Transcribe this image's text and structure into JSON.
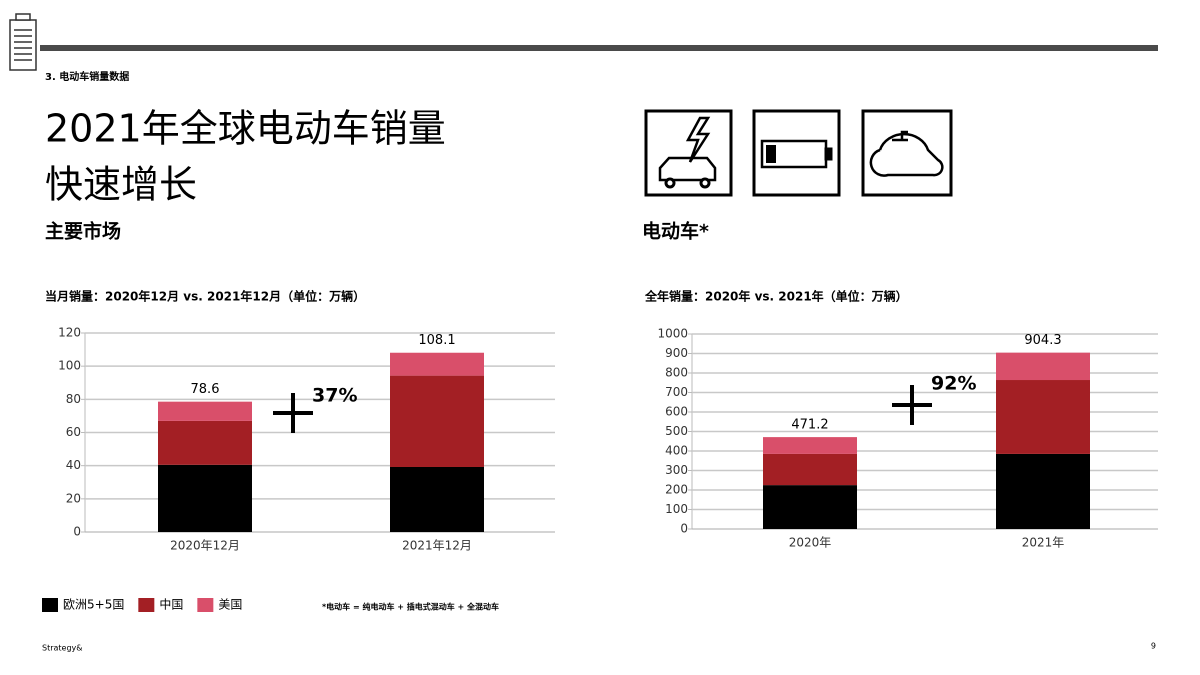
{
  "section": "3. 电动车销量数据",
  "title_lines": [
    "2021年全球电动车销量",
    "快速增长"
  ],
  "footnote": "*电动车 = 纯电动车 + 插电式混动车 + 全混动车",
  "footer": "Strategy&",
  "page_number": "9",
  "chart_data": [
    {
      "type": "stacked-bar",
      "heading": "主要市场",
      "title": "当月销量：2020年12月 vs. 2021年12月（单位：万辆）",
      "categories": [
        "2020年12月",
        "2021年12月"
      ],
      "series": [
        {
          "name": "欧洲5+5国",
          "color": "#000000",
          "values": [
            40.5,
            39.2
          ]
        },
        {
          "name": "中国",
          "color": "#a31f24",
          "values": [
            26.5,
            55.1
          ]
        },
        {
          "name": "美国",
          "color": "#d94f6a",
          "values": [
            11.6,
            13.8
          ]
        }
      ],
      "totals": [
        78.6,
        108.1
      ],
      "annotation": "37%",
      "ylim": [
        0,
        120
      ],
      "yticks": [
        0,
        20,
        40,
        60,
        80,
        100,
        120
      ],
      "grid": true,
      "legend": "bottom-left"
    },
    {
      "type": "stacked-bar",
      "heading": "电动车*",
      "title": "全年销量：2020年 vs. 2021年（单位：万辆）",
      "categories": [
        "2020年",
        "2021年"
      ],
      "series": [
        {
          "name": "欧洲5+5国",
          "color": "#000000",
          "values": [
            225,
            385
          ]
        },
        {
          "name": "中国",
          "color": "#a31f24",
          "values": [
            160,
            379
          ]
        },
        {
          "name": "美国",
          "color": "#d94f6a",
          "values": [
            86.2,
            140.3
          ]
        }
      ],
      "totals": [
        471.2,
        904.3
      ],
      "annotation": "92%",
      "ylim": [
        0,
        1000
      ],
      "yticks": [
        0,
        100,
        200,
        300,
        400,
        500,
        600,
        700,
        800,
        900,
        1000
      ],
      "grid": true
    }
  ]
}
